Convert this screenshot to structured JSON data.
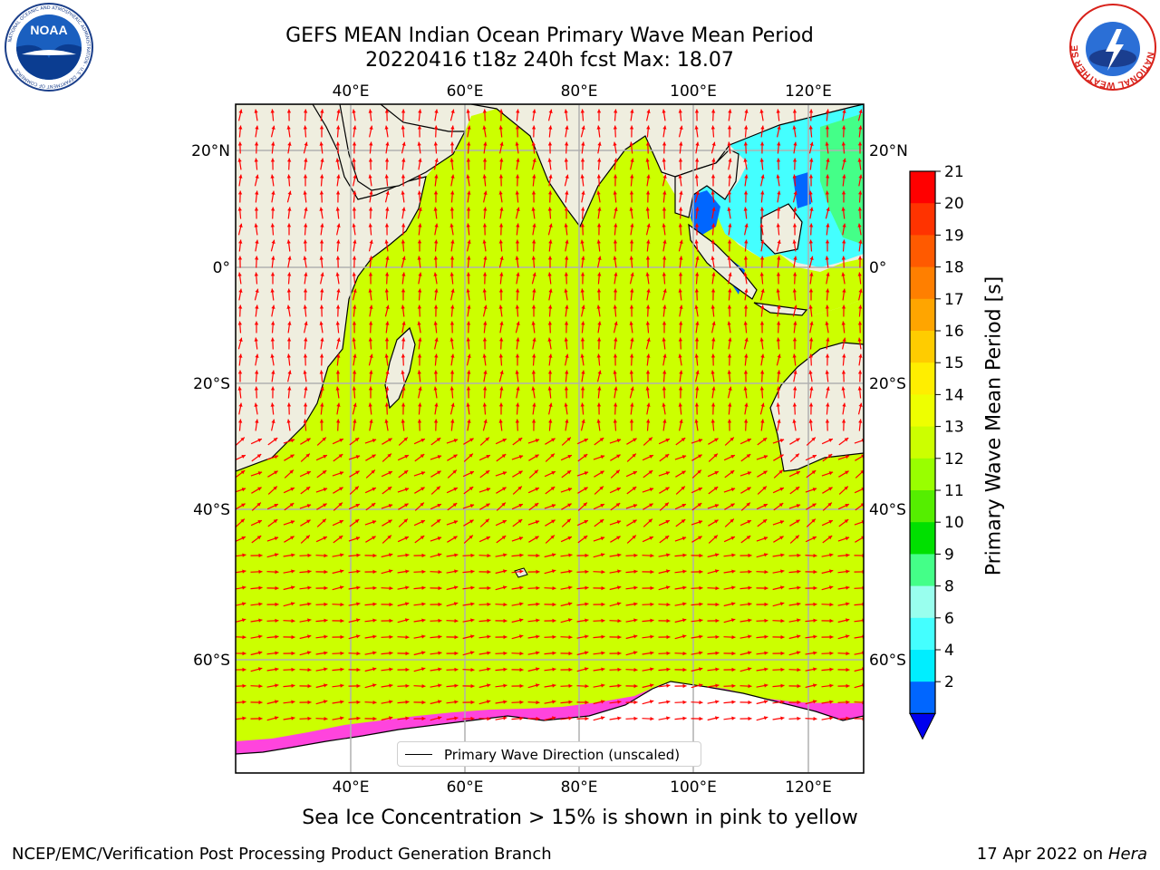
{
  "header": {
    "title_line1": "GEFS MEAN Indian Ocean Primary Wave Mean Period",
    "title_line2": "20220416 t18z 240h fcst   Max: 18.07"
  },
  "logos": {
    "left": "NOAA",
    "left_ring": "NATIONAL OCEANIC AND ATMOSPHERIC ADMINISTRATION · U.S. DEPARTMENT OF COMMERCE",
    "right_ring": "NATIONAL WEATHER SERVICE"
  },
  "map": {
    "lon_ticks_top": [
      "40°E",
      "60°E",
      "80°E",
      "100°E",
      "120°E"
    ],
    "lon_ticks_bottom": [
      "40°E",
      "60°E",
      "80°E",
      "100°E",
      "120°E"
    ],
    "lat_ticks_left": [
      "20°N",
      "0°",
      "20°S",
      "40°S",
      "60°S"
    ],
    "lat_ticks_right": [
      "20°N",
      "0°",
      "20°S",
      "40°S",
      "60°S"
    ],
    "legend": "Primary Wave Direction (unscaled)",
    "arrow_color": "#ff0000",
    "land_color": "#efeedf",
    "ocean_base_color": "#ccff00"
  },
  "colorbar": {
    "title": "Primary Wave Mean Period [s]",
    "labels": [
      "21",
      "20",
      "19",
      "18",
      "17",
      "16",
      "15",
      "14",
      "13",
      "12",
      "11",
      "10",
      "9",
      "8",
      "6",
      "4",
      "2"
    ],
    "colors": [
      "#ff0000",
      "#ff3300",
      "#ff5a00",
      "#ff7f00",
      "#ffa500",
      "#ffcc00",
      "#ffee00",
      "#eeff00",
      "#ccff00",
      "#99ff00",
      "#55ee00",
      "#00e000",
      "#44ff88",
      "#99ffee",
      "#44ffff",
      "#00eeff",
      "#0066ff"
    ],
    "underflow_color": "#0000ee"
  },
  "notes": {
    "ice": "Sea Ice Concentration > 15% is shown in pink to yellow"
  },
  "footer": {
    "left": "NCEP/EMC/Verification Post Processing Product Generation Branch",
    "right_prefix": "17 Apr 2022 on ",
    "right_host": "Hera"
  }
}
